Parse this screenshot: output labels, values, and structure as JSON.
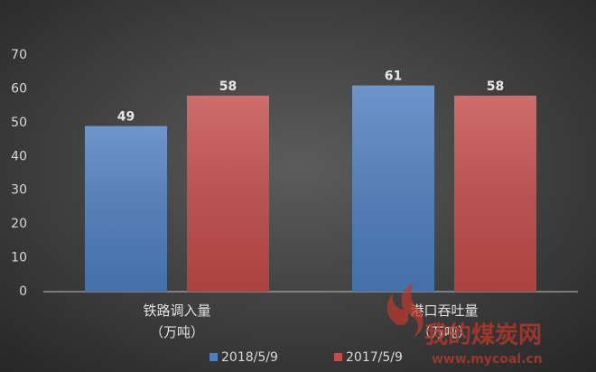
{
  "chart_data": {
    "type": "bar",
    "categories": [
      [
        "铁路调入量",
        "（万吨）"
      ],
      [
        "港口吞吐量",
        "（万吨）"
      ]
    ],
    "series": [
      {
        "name": "2018/5/9",
        "color": "#4f7fc0",
        "values": [
          49,
          61
        ]
      },
      {
        "name": "2017/5/9",
        "color": "#c44c4c",
        "values": [
          58,
          58
        ]
      }
    ],
    "ylim": [
      0,
      70
    ],
    "yticks": [
      0,
      10,
      20,
      30,
      40,
      50,
      60,
      70
    ],
    "grid": false,
    "legend": "bottom",
    "watermark": [
      "我的煤炭网",
      "www.mycoal.cn"
    ]
  }
}
